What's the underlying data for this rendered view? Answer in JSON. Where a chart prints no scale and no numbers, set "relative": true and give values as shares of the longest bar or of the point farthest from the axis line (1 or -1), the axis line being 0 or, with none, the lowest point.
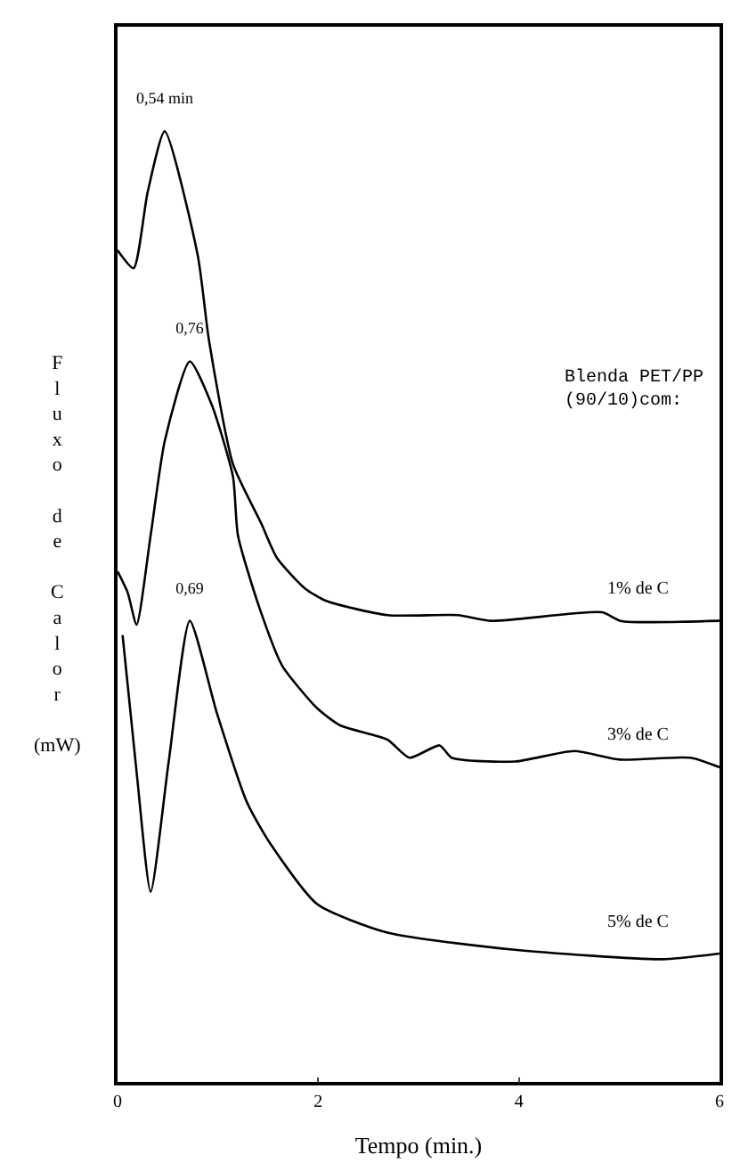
{
  "chart_data": {
    "type": "line",
    "relative": true,
    "xlabel": "Tempo (min.)",
    "ylabel": "Fluxo de Calor (mW)",
    "xlim": [
      0,
      6
    ],
    "xticks": [
      0,
      2,
      4,
      6
    ],
    "legend": false,
    "marker": "none",
    "line_style": "solid",
    "series": [
      {
        "name": "1% de C",
        "color": "#000000",
        "x": [
          0,
          0.16,
          0.3,
          0.47,
          0.8,
          0.91,
          1.15,
          1.43,
          1.59,
          1.87,
          2.08,
          2.69,
          3.39,
          3.73,
          4.83,
          5.01,
          6.0
        ],
        "values": [
          0.875,
          0.856,
          0.936,
          1.0,
          0.869,
          0.781,
          0.65,
          0.588,
          0.551,
          0.519,
          0.506,
          0.491,
          0.491,
          0.485,
          0.494,
          0.485,
          0.485
        ]
      },
      {
        "name": "3% de C",
        "color": "#000000",
        "x": [
          0,
          0.1,
          0.19,
          0.33,
          0.47,
          0.72,
          0.94,
          1.15,
          1.2,
          1.41,
          1.64,
          1.99,
          2.22,
          2.69,
          2.91,
          3.21,
          3.33,
          3.96,
          4.55,
          5.01,
          5.71,
          6.0
        ],
        "values": [
          0.537,
          0.515,
          0.481,
          0.575,
          0.674,
          0.758,
          0.712,
          0.637,
          0.575,
          0.5,
          0.438,
          0.393,
          0.375,
          0.36,
          0.341,
          0.354,
          0.341,
          0.337,
          0.348,
          0.339,
          0.341,
          0.331
        ]
      },
      {
        "name": "5% de C",
        "color": "#000000",
        "x": [
          0.05,
          0.19,
          0.33,
          0.51,
          0.72,
          0.99,
          1.29,
          1.52,
          1.99,
          2.69,
          3.96,
          5.43,
          6.0
        ],
        "values": [
          0.47,
          0.326,
          0.2,
          0.337,
          0.485,
          0.388,
          0.294,
          0.251,
          0.187,
          0.157,
          0.139,
          0.129,
          0.135
        ]
      }
    ],
    "annotations": [
      "0,54 min",
      "0,76",
      "0,69",
      "Blenda PET/PP\n(90/10)com:"
    ]
  }
}
